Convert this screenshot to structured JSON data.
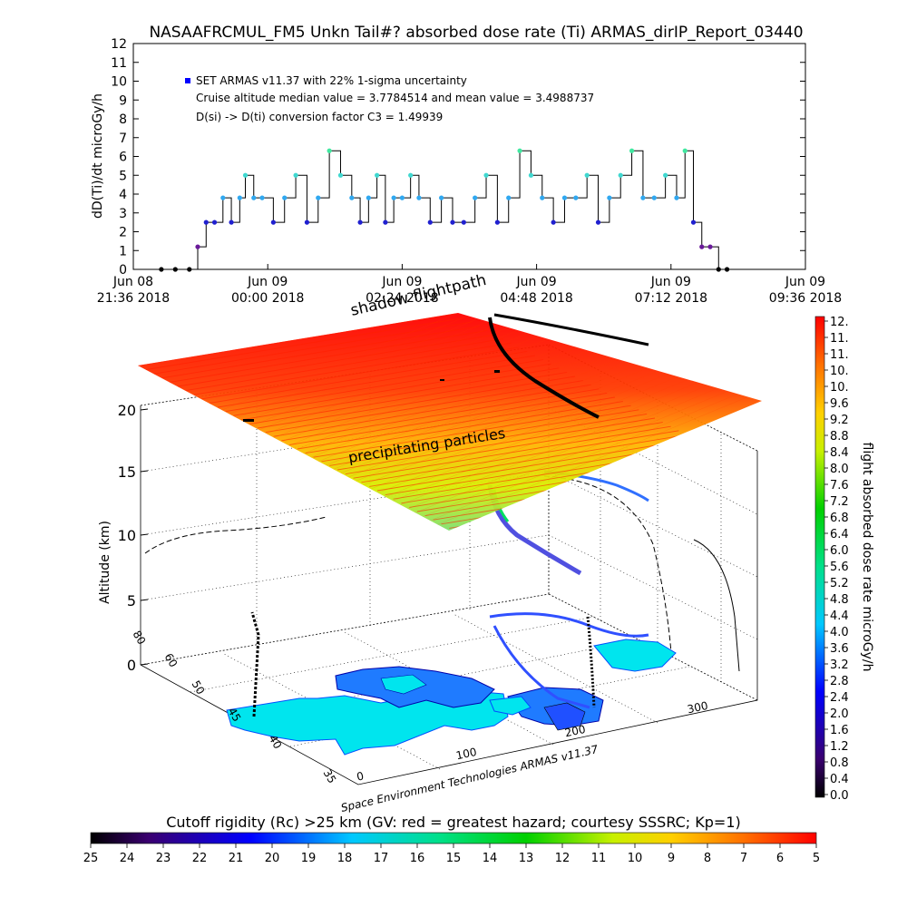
{
  "page_title": "NASAAFRCMUL_FM5 Unkn Tail#? absorbed dose rate (Ti) ARMAS_dirIP_Report_03440",
  "chart_data": [
    {
      "type": "line",
      "ylabel": "dD(Ti)/dt microGy/h",
      "ylim": [
        0,
        12
      ],
      "yticks": [
        "0",
        "1",
        "2",
        "3",
        "4",
        "5",
        "6",
        "7",
        "8",
        "9",
        "10",
        "11",
        "12"
      ],
      "xticks": [
        {
          "line1": "Jun 08",
          "line2": "21:36 2018"
        },
        {
          "line1": "Jun 09",
          "line2": "00:00 2018"
        },
        {
          "line1": "Jun 09",
          "line2": "02:24 2018"
        },
        {
          "line1": "Jun 09",
          "line2": "04:48 2018"
        },
        {
          "line1": "Jun 09",
          "line2": "07:12 2018"
        },
        {
          "line1": "Jun 09",
          "line2": "09:36 2018"
        }
      ],
      "xlim_hours": [
        0,
        12
      ],
      "annotations": [
        "SET ARMAS v11.37 with 22% 1-sigma uncertainty",
        "Cruise altitude median value = 3.7784514 and mean value = 3.4988737",
        "D(si) -> D(ti) conversion factor C3 = 1.49939"
      ],
      "legend_color": "#0000ff",
      "x": [
        0.5,
        0.75,
        1.0,
        1.15,
        1.3,
        1.45,
        1.6,
        1.75,
        1.9,
        2.0,
        2.15,
        2.3,
        2.5,
        2.7,
        2.9,
        3.1,
        3.3,
        3.5,
        3.7,
        3.9,
        4.05,
        4.2,
        4.35,
        4.5,
        4.65,
        4.8,
        4.95,
        5.1,
        5.3,
        5.5,
        5.7,
        5.9,
        6.1,
        6.3,
        6.5,
        6.7,
        6.9,
        7.1,
        7.3,
        7.5,
        7.7,
        7.9,
        8.1,
        8.3,
        8.5,
        8.7,
        8.9,
        9.1,
        9.3,
        9.5,
        9.7,
        9.85,
        10.0,
        10.15,
        10.3,
        10.45,
        10.6
      ],
      "values": [
        0,
        0,
        0,
        1.2,
        2.5,
        2.5,
        3.8,
        2.5,
        3.8,
        5.0,
        3.8,
        3.8,
        2.5,
        3.8,
        5.0,
        2.5,
        3.8,
        6.3,
        5.0,
        3.8,
        2.5,
        3.8,
        5.0,
        2.5,
        3.8,
        3.8,
        5.0,
        3.8,
        2.5,
        3.8,
        2.5,
        2.5,
        3.8,
        5.0,
        2.5,
        3.8,
        6.3,
        5.0,
        3.8,
        2.5,
        3.8,
        3.8,
        5.0,
        2.5,
        3.8,
        5.0,
        6.3,
        3.8,
        3.8,
        5.0,
        3.8,
        6.3,
        2.5,
        1.2,
        1.2,
        0,
        0
      ]
    },
    {
      "type": "scatter",
      "title": "shadow flightpath",
      "ylabel": "Altitude (km)",
      "zticks": [
        "0",
        "5",
        "10",
        "15",
        "20"
      ],
      "lat_ticks": [
        "35",
        "40",
        "45",
        "50",
        "60",
        "80"
      ],
      "lon_ticks": [
        "0",
        "100",
        "200",
        "300"
      ],
      "annotations": [
        "precipitating particles",
        "Space Environment Technologies ARMAS v11.37"
      ],
      "layer_altitude_km": 20
    },
    {
      "type": "heatmap",
      "colorbar_label": "flight absorbed dose rate microGy/h",
      "colorbar_ticks": [
        "0.0",
        "0.4",
        "0.8",
        "1.2",
        "1.6",
        "2.0",
        "2.4",
        "2.8",
        "3.2",
        "3.6",
        "4.0",
        "4.4",
        "4.8",
        "5.2",
        "5.6",
        "6.0",
        "6.4",
        "6.8",
        "7.2",
        "7.6",
        "8.0",
        "8.4",
        "8.8",
        "9.2",
        "9.6",
        "10.",
        "10.",
        "11.",
        "11.",
        "12."
      ]
    },
    {
      "type": "heatmap",
      "title": "Cutoff rigidity (Rc) >25 km (GV: red = greatest hazard; courtesy SSSRC; Kp=1)",
      "ticks": [
        "25",
        "24",
        "23",
        "22",
        "21",
        "20",
        "19",
        "18",
        "17",
        "16",
        "15",
        "14",
        "13",
        "12",
        "11",
        "10",
        "9",
        "8",
        "7",
        "6",
        "5"
      ]
    }
  ]
}
